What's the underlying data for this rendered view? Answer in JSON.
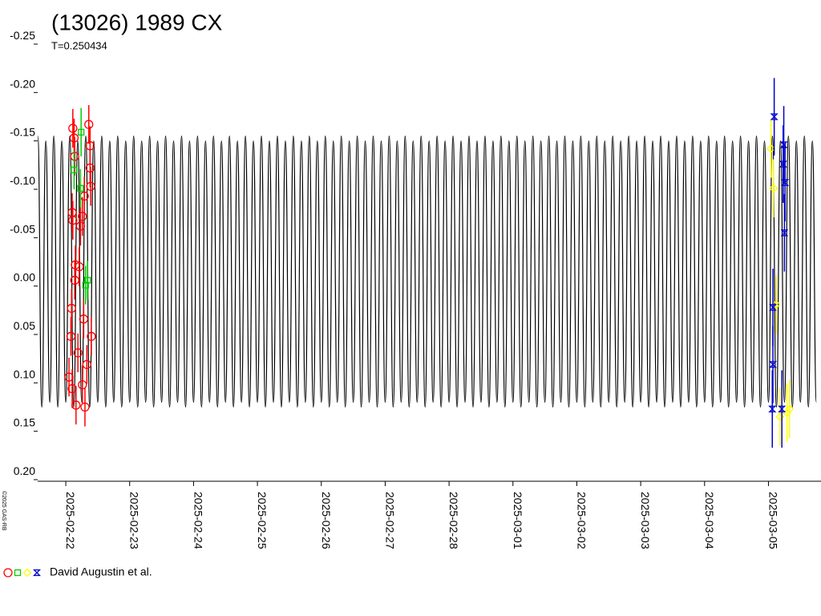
{
  "chart_data": {
    "type": "lightcurve",
    "title": "(13026) 1989 CX",
    "subtitle": "T=0.250434",
    "credit": "©2025 GAS-RB",
    "xlim": [
      -0.44,
      11.81
    ],
    "xticks": [
      {
        "value": 0,
        "label": "2025-02-22"
      },
      {
        "value": 1,
        "label": "2025-02-23"
      },
      {
        "value": 2,
        "label": "2025-02-24"
      },
      {
        "value": 3,
        "label": "2025-02-25"
      },
      {
        "value": 4,
        "label": "2025-02-26"
      },
      {
        "value": 5,
        "label": "2025-02-27"
      },
      {
        "value": 6,
        "label": "2025-02-28"
      },
      {
        "value": 7,
        "label": "2025-03-01"
      },
      {
        "value": 8,
        "label": "2025-03-02"
      },
      {
        "value": 9,
        "label": "2025-03-03"
      },
      {
        "value": 10,
        "label": "2025-03-04"
      },
      {
        "value": 11,
        "label": "2025-03-05"
      }
    ],
    "ylim": [
      -0.25,
      0.2
    ],
    "y_reversed": true,
    "yticks": [
      -0.25,
      {
        "value": -0.2,
        "label": "-0.20"
      },
      -0.15,
      {
        "value": -0.1,
        "label": "-0.10"
      },
      -0.05,
      {
        "value": 0,
        "label": "0.00"
      },
      0.05,
      {
        "value": 0.1,
        "label": "0.10"
      },
      0.15,
      {
        "value": 0.2,
        "label": "0.20"
      }
    ],
    "model": {
      "color": "#000000",
      "x": [
        -0.4375,
        -0.375,
        -0.3125,
        -0.25,
        -0.1875,
        -0.125,
        -0.0625,
        0,
        0.0625,
        0.125,
        0.1875,
        0.25,
        0.3125,
        0.375,
        0.4375,
        0.5,
        0.5625,
        0.625,
        0.6875,
        0.75,
        0.8125,
        0.875,
        0.9375,
        1,
        1.0625,
        1.125,
        1.1875,
        1.25,
        1.3125,
        1.375,
        1.4375,
        1.5,
        1.5625,
        1.625,
        1.6875,
        1.75,
        1.8125,
        1.875,
        1.9375,
        2,
        2.0625,
        2.125,
        2.1875,
        2.25,
        2.3125,
        2.375,
        2.4375,
        2.5,
        2.5625,
        2.625,
        2.6875,
        2.75,
        2.8125,
        2.875,
        2.9375,
        3,
        3.0625,
        3.125,
        3.1875,
        3.25,
        3.3125,
        3.375,
        3.4375,
        3.5,
        3.5625,
        3.625,
        3.6875,
        3.75,
        3.8125,
        3.875,
        3.9375,
        4,
        4.0625,
        4.125,
        4.1875,
        4.25,
        4.3125,
        4.375,
        4.4375,
        4.5,
        4.5625,
        4.625,
        4.6875,
        4.75,
        4.8125,
        4.875,
        4.9375,
        5,
        5.0625,
        5.125,
        5.1875,
        5.25,
        5.3125,
        5.375,
        5.4375,
        5.5,
        5.5625,
        5.625,
        5.6875,
        5.75,
        5.8125,
        5.875,
        5.9375,
        6,
        6.0625,
        6.125,
        6.1875,
        6.25,
        6.3125,
        6.375,
        6.4375,
        6.5,
        6.5625,
        6.625,
        6.6875,
        6.75,
        6.8125,
        6.875,
        6.9375,
        7,
        7.0625,
        7.125,
        7.1875,
        7.25,
        7.3125,
        7.375,
        7.4375,
        7.5,
        7.5625,
        7.625,
        7.6875,
        7.75,
        7.8125,
        7.875,
        7.9375,
        8,
        8.0625,
        8.125,
        8.1875,
        8.25,
        8.3125,
        8.375,
        8.4375,
        8.5,
        8.5625,
        8.625,
        8.6875,
        8.75,
        8.8125,
        8.875,
        8.9375,
        9,
        9.0625,
        9.125,
        9.1875,
        9.25,
        9.3125,
        9.375,
        9.4375,
        9.5,
        9.5625,
        9.625,
        9.6875,
        9.75,
        9.8125,
        9.875,
        9.9375,
        10,
        10.0625,
        10.125,
        10.1875,
        10.25,
        10.3125,
        10.375,
        10.4375,
        10.5,
        10.5625,
        10.625,
        10.6875,
        10.75,
        10.8125,
        10.875,
        10.9375,
        11,
        11.0625,
        11.125,
        11.1875,
        11.25,
        11.3125,
        11.375,
        11.4375,
        11.5,
        11.5625,
        11.625,
        11.6875,
        11.75
      ],
      "values": [
        -0.155,
        0.125,
        -0.15,
        0.12,
        -0.155,
        0.125,
        -0.15,
        0.12,
        -0.155,
        0.125,
        -0.15,
        0.12,
        -0.155,
        0.125,
        -0.15,
        0.12,
        -0.155,
        0.125,
        -0.15,
        0.12,
        -0.155,
        0.125,
        -0.15,
        0.12,
        -0.155,
        0.125,
        -0.15,
        0.12,
        -0.155,
        0.125,
        -0.15,
        0.12,
        -0.155,
        0.125,
        -0.15,
        0.12,
        -0.155,
        0.125,
        -0.15,
        0.12,
        -0.155,
        0.125,
        -0.15,
        0.12,
        -0.155,
        0.125,
        -0.15,
        0.12,
        -0.155,
        0.125,
        -0.15,
        0.12,
        -0.155,
        0.125,
        -0.15,
        0.12,
        -0.155,
        0.125,
        -0.15,
        0.12,
        -0.155,
        0.125,
        -0.15,
        0.12,
        -0.155,
        0.125,
        -0.15,
        0.12,
        -0.155,
        0.125,
        -0.15,
        0.12,
        -0.155,
        0.125,
        -0.15,
        0.12,
        -0.155,
        0.125,
        -0.15,
        0.12,
        -0.155,
        0.125,
        -0.15,
        0.12,
        -0.155,
        0.125,
        -0.15,
        0.12,
        -0.155,
        0.125,
        -0.15,
        0.12,
        -0.155,
        0.125,
        -0.15,
        0.12,
        -0.155,
        0.125,
        -0.15,
        0.12,
        -0.155,
        0.125,
        -0.15,
        0.12,
        -0.155,
        0.125,
        -0.15,
        0.12,
        -0.155,
        0.125,
        -0.15,
        0.12,
        -0.155,
        0.125,
        -0.15,
        0.12,
        -0.155,
        0.125,
        -0.15,
        0.12,
        -0.155,
        0.125,
        -0.15,
        0.12,
        -0.155,
        0.125,
        -0.15,
        0.12,
        -0.155,
        0.125,
        -0.15,
        0.12,
        -0.155,
        0.125,
        -0.15,
        0.12,
        -0.155,
        0.125,
        -0.15,
        0.12,
        -0.155,
        0.125,
        -0.15,
        0.12,
        -0.155,
        0.125,
        -0.15,
        0.12,
        -0.155,
        0.125,
        -0.15,
        0.12,
        -0.155,
        0.125,
        -0.15,
        0.12,
        -0.155,
        0.125,
        -0.15,
        0.12,
        -0.155,
        0.125,
        -0.15,
        0.12,
        -0.155,
        0.125,
        -0.15,
        0.12,
        -0.155,
        0.125,
        -0.15,
        0.12,
        -0.155,
        0.125,
        -0.15,
        0.12,
        -0.155,
        0.125,
        -0.15,
        0.12,
        -0.155,
        0.125,
        -0.15,
        0.12,
        -0.155,
        0.125,
        -0.15,
        0.12,
        -0.155,
        0.125,
        -0.15,
        0.12,
        -0.155,
        0.125,
        -0.15,
        0.12
      ]
    },
    "series": [
      {
        "name": "David Augustin et al.",
        "groups": [
          {
            "color": "#ff0000",
            "marker": "circle",
            "x": [
              0.11,
              0.13,
              0.14,
              0.1,
              0.11,
              0.15,
              0.14,
              0.09,
              0.08,
              0.05,
              0.1,
              0.16,
              0.19,
              0.21,
              0.23,
              0.26,
              0.29,
              0.28,
              0.26,
              0.3,
              0.36,
              0.38,
              0.38,
              0.39,
              0.4,
              0.33
            ],
            "values": [
              -0.163,
              -0.153,
              -0.134,
              -0.076,
              -0.068,
              -0.022,
              -0.006,
              0.023,
              0.052,
              0.094,
              0.106,
              0.123,
              0.069,
              -0.02,
              -0.062,
              -0.072,
              -0.093,
              0.034,
              0.102,
              0.125,
              -0.167,
              -0.145,
              -0.122,
              -0.103,
              0.052,
              0.081
            ],
            "errors": [
              0.02,
              0.02,
              0.02,
              0.02,
              0.02,
              0.02,
              0.02,
              0.02,
              0.02,
              0.02,
              0.02,
              0.02,
              0.02,
              0.02,
              0.02,
              0.02,
              0.02,
              0.02,
              0.02,
              0.02,
              0.02,
              0.02,
              0.02,
              0.02,
              0.02,
              0.02
            ]
          },
          {
            "color": "#00cc00",
            "marker": "square",
            "x": [
              0.24,
              0.13,
              0.23,
              0.34,
              0.31
            ],
            "values": [
              -0.159,
              -0.12,
              -0.101,
              -0.006,
              -0.001
            ],
            "errors": [
              0.025,
              0.02,
              0.02,
              0.02,
              0.02
            ]
          },
          {
            "color": "#ffff00",
            "marker": "diamond",
            "x": [
              11.04,
              11.08,
              11.12,
              11.18,
              11.29,
              11.33
            ],
            "values": [
              -0.142,
              -0.101,
              0.019,
              0.135,
              0.131,
              0.127
            ],
            "errors": [
              0.03,
              0.03,
              0.03,
              0.03,
              0.03,
              0.03
            ]
          },
          {
            "color": "#0000cc",
            "marker": "star",
            "x": [
              11.09,
              11.24,
              11.23,
              11.26,
              11.25,
              11.07,
              11.07,
              11.06,
              11.21
            ],
            "values": [
              -0.175,
              -0.146,
              -0.126,
              -0.107,
              -0.055,
              0.022,
              0.081,
              0.127,
              0.127
            ],
            "errors": [
              0.04,
              0.04,
              0.04,
              0.04,
              0.04,
              0.04,
              0.04,
              0.04,
              0.04
            ]
          }
        ]
      }
    ]
  }
}
